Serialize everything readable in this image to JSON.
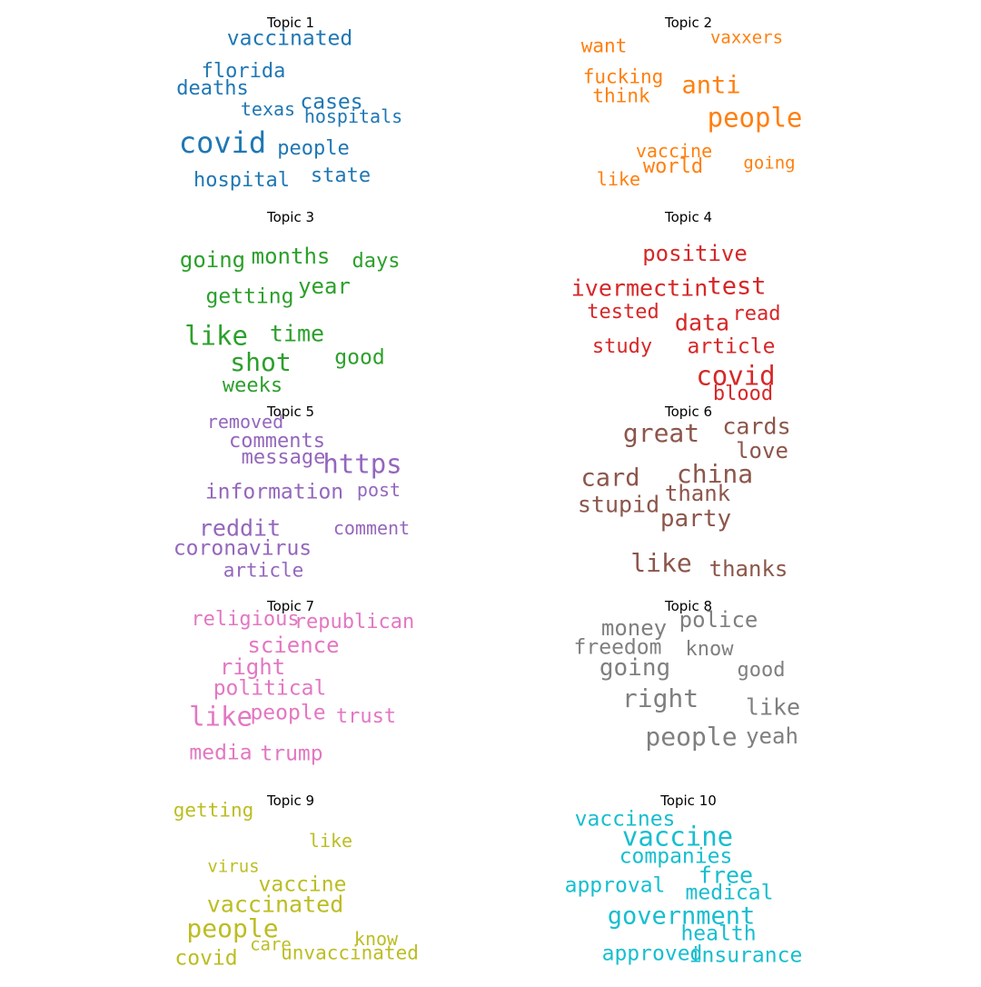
{
  "topics": [
    {
      "title": "Topic 1",
      "color": "#1f77b4",
      "words": [
        {
          "text": "vaccinated",
          "weight": 0.5
        },
        {
          "text": "florida",
          "weight": 0.42
        },
        {
          "text": "deaths",
          "weight": 0.45
        },
        {
          "text": "texas",
          "weight": 0.36
        },
        {
          "text": "cases",
          "weight": 0.52
        },
        {
          "text": "hospitals",
          "weight": 0.36
        },
        {
          "text": "covid",
          "weight": 1.0
        },
        {
          "text": "people",
          "weight": 0.42
        },
        {
          "text": "state",
          "weight": 0.45
        },
        {
          "text": "hospital",
          "weight": 0.45
        }
      ]
    },
    {
      "title": "Topic 2",
      "color": "#ff7f0e",
      "words": [
        {
          "text": "want",
          "weight": 0.4
        },
        {
          "text": "vaxxers",
          "weight": 0.3
        },
        {
          "text": "fucking",
          "weight": 0.38
        },
        {
          "text": "anti",
          "weight": 0.7
        },
        {
          "text": "think",
          "weight": 0.4
        },
        {
          "text": "people",
          "weight": 0.85
        },
        {
          "text": "vaccine",
          "weight": 0.36
        },
        {
          "text": "world",
          "weight": 0.45
        },
        {
          "text": "going",
          "weight": 0.3
        },
        {
          "text": "like",
          "weight": 0.32
        }
      ]
    },
    {
      "title": "Topic 3",
      "color": "#2ca02c",
      "words": [
        {
          "text": "going",
          "weight": 0.55
        },
        {
          "text": "months",
          "weight": 0.55
        },
        {
          "text": "days",
          "weight": 0.45
        },
        {
          "text": "year",
          "weight": 0.55
        },
        {
          "text": "getting",
          "weight": 0.5
        },
        {
          "text": "like",
          "weight": 0.85
        },
        {
          "text": "time",
          "weight": 0.6
        },
        {
          "text": "shot",
          "weight": 0.78
        },
        {
          "text": "good",
          "weight": 0.52
        },
        {
          "text": "weeks",
          "weight": 0.45
        }
      ]
    },
    {
      "title": "Topic 4",
      "color": "#d62728",
      "words": [
        {
          "text": "positive",
          "weight": 0.55
        },
        {
          "text": "ivermectin",
          "weight": 0.6
        },
        {
          "text": "test",
          "weight": 0.7
        },
        {
          "text": "tested",
          "weight": 0.45
        },
        {
          "text": "read",
          "weight": 0.45
        },
        {
          "text": "data",
          "weight": 0.6
        },
        {
          "text": "study",
          "weight": 0.42
        },
        {
          "text": "article",
          "weight": 0.48
        },
        {
          "text": "covid",
          "weight": 0.85
        },
        {
          "text": "blood",
          "weight": 0.42
        }
      ]
    },
    {
      "title": "Topic 5",
      "color": "#9467bd",
      "words": [
        {
          "text": "removed",
          "weight": 0.36
        },
        {
          "text": "comments",
          "weight": 0.45
        },
        {
          "text": "message",
          "weight": 0.45
        },
        {
          "text": "https",
          "weight": 0.85
        },
        {
          "text": "information",
          "weight": 0.5
        },
        {
          "text": "post",
          "weight": 0.36
        },
        {
          "text": "reddit",
          "weight": 0.6
        },
        {
          "text": "comment",
          "weight": 0.36
        },
        {
          "text": "coronavirus",
          "weight": 0.48
        },
        {
          "text": "article",
          "weight": 0.4
        }
      ]
    },
    {
      "title": "Topic 6",
      "color": "#8c564b",
      "words": [
        {
          "text": "great",
          "weight": 0.8
        },
        {
          "text": "cards",
          "weight": 0.6
        },
        {
          "text": "love",
          "weight": 0.55
        },
        {
          "text": "card",
          "weight": 0.7
        },
        {
          "text": "china",
          "weight": 0.8
        },
        {
          "text": "stupid",
          "weight": 0.6
        },
        {
          "text": "thank",
          "weight": 0.55
        },
        {
          "text": "party",
          "weight": 0.65
        },
        {
          "text": "like",
          "weight": 0.8
        },
        {
          "text": "thanks",
          "weight": 0.55
        }
      ]
    },
    {
      "title": "Topic 7",
      "color": "#e377c2",
      "words": [
        {
          "text": "religious",
          "weight": 0.45
        },
        {
          "text": "republican",
          "weight": 0.45
        },
        {
          "text": "science",
          "weight": 0.55
        },
        {
          "text": "right",
          "weight": 0.55
        },
        {
          "text": "political",
          "weight": 0.5
        },
        {
          "text": "like",
          "weight": 0.85
        },
        {
          "text": "people",
          "weight": 0.5
        },
        {
          "text": "trust",
          "weight": 0.45
        },
        {
          "text": "media",
          "weight": 0.5
        },
        {
          "text": "trump",
          "weight": 0.5
        }
      ]
    },
    {
      "title": "Topic 8",
      "color": "#7f7f7f",
      "words": [
        {
          "text": "money",
          "weight": 0.55
        },
        {
          "text": "police",
          "weight": 0.55
        },
        {
          "text": "freedom",
          "weight": 0.48
        },
        {
          "text": "know",
          "weight": 0.45
        },
        {
          "text": "going",
          "weight": 0.65
        },
        {
          "text": "good",
          "weight": 0.45
        },
        {
          "text": "right",
          "weight": 0.8
        },
        {
          "text": "like",
          "weight": 0.6
        },
        {
          "text": "people",
          "weight": 0.8
        },
        {
          "text": "yeah",
          "weight": 0.55
        }
      ]
    },
    {
      "title": "Topic 9",
      "color": "#bcbd22",
      "words": [
        {
          "text": "getting",
          "weight": 0.4
        },
        {
          "text": "like",
          "weight": 0.36
        },
        {
          "text": "virus",
          "weight": 0.3
        },
        {
          "text": "vaccine",
          "weight": 0.5
        },
        {
          "text": "vaccinated",
          "weight": 0.6
        },
        {
          "text": "people",
          "weight": 0.8
        },
        {
          "text": "know",
          "weight": 0.33
        },
        {
          "text": "care",
          "weight": 0.3
        },
        {
          "text": "unvaccinated",
          "weight": 0.38
        },
        {
          "text": "covid",
          "weight": 0.5
        }
      ]
    },
    {
      "title": "Topic 10",
      "color": "#17becf",
      "words": [
        {
          "text": "vaccines",
          "weight": 0.5
        },
        {
          "text": "vaccine",
          "weight": 0.85
        },
        {
          "text": "companies",
          "weight": 0.5
        },
        {
          "text": "free",
          "weight": 0.6
        },
        {
          "text": "approval",
          "weight": 0.5
        },
        {
          "text": "medical",
          "weight": 0.5
        },
        {
          "text": "government",
          "weight": 0.7
        },
        {
          "text": "health",
          "weight": 0.5
        },
        {
          "text": "approved",
          "weight": 0.5
        },
        {
          "text": "insurance",
          "weight": 0.5
        }
      ]
    }
  ]
}
